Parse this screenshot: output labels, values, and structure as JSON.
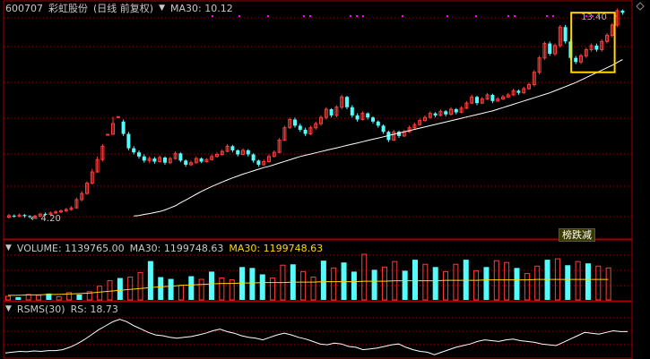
{
  "header": {
    "stock_code": "600707",
    "stock_name": "彩虹股份",
    "period": "(日线 前复权)",
    "ma_label": "MA30: 10.12"
  },
  "volume_header": {
    "volume": "VOLUME: 1139765.00",
    "ma30": "MA30: 1199748.63",
    "ma30_alt": "MA30: 1199748.63"
  },
  "rsms_header": {
    "name": "RSMS(30)",
    "rs": "RS: 18.73"
  },
  "badge": "榜跌减",
  "colors": {
    "up": "#ff3c3c",
    "down": "#54fcfc",
    "ma": "#ffffff",
    "volume_ma": "#ffd800",
    "highlight": "#ffd800",
    "grid": "#a00000",
    "marker": "#ff00ff"
  },
  "chart_data": [
    {
      "type": "candlestick",
      "title": "600707 彩虹股份 (日线 前复权)",
      "annotations": [
        "13.40",
        "4.20"
      ],
      "ylim": [
        3.4,
        14.6
      ],
      "candles": [
        [
          4.25,
          4.32,
          4.4,
          4.18
        ],
        [
          4.32,
          4.28,
          4.38,
          4.22
        ],
        [
          4.28,
          4.35,
          4.42,
          4.24
        ],
        [
          4.35,
          4.3,
          4.4,
          4.22
        ],
        [
          4.3,
          4.26,
          4.34,
          4.2
        ],
        [
          4.26,
          4.3,
          4.36,
          4.22
        ],
        [
          4.3,
          4.4,
          4.46,
          4.26
        ],
        [
          4.4,
          4.38,
          4.48,
          4.32
        ],
        [
          4.38,
          4.45,
          4.52,
          4.34
        ],
        [
          4.45,
          4.5,
          4.58,
          4.4
        ],
        [
          4.5,
          4.55,
          4.62,
          4.44
        ],
        [
          4.55,
          4.62,
          4.7,
          4.5
        ],
        [
          4.62,
          4.7,
          4.78,
          4.56
        ],
        [
          4.7,
          5.1,
          5.2,
          4.66
        ],
        [
          5.1,
          5.4,
          5.52,
          5.02
        ],
        [
          5.4,
          5.9,
          6.0,
          5.34
        ],
        [
          5.9,
          6.45,
          6.6,
          5.84
        ],
        [
          6.45,
          7.05,
          7.2,
          6.4
        ],
        [
          7.05,
          7.7,
          7.8,
          6.96
        ],
        [
          8.28,
          8.28,
          8.28,
          8.28
        ],
        [
          8.28,
          8.8,
          9.14,
          8.28
        ],
        [
          9.14,
          9.14,
          9.14,
          9.14
        ],
        [
          8.9,
          8.3,
          9.0,
          8.2
        ],
        [
          8.3,
          7.6,
          8.4,
          7.5
        ],
        [
          7.6,
          7.4,
          7.7,
          7.3
        ],
        [
          7.4,
          7.2,
          7.5,
          7.1
        ],
        [
          7.2,
          7.0,
          7.3,
          6.9
        ],
        [
          7.0,
          7.1,
          7.2,
          6.88
        ],
        [
          7.1,
          6.95,
          7.18,
          6.85
        ],
        [
          6.95,
          7.15,
          7.25,
          6.9
        ],
        [
          7.15,
          6.9,
          7.2,
          6.8
        ],
        [
          6.9,
          7.1,
          7.18,
          6.84
        ],
        [
          7.1,
          7.35,
          7.45,
          7.05
        ],
        [
          7.35,
          7.0,
          7.4,
          6.92
        ],
        [
          7.0,
          6.8,
          7.06,
          6.7
        ],
        [
          6.8,
          6.9,
          7.0,
          6.74
        ],
        [
          6.9,
          7.1,
          7.2,
          6.85
        ],
        [
          7.1,
          6.95,
          7.16,
          6.88
        ],
        [
          6.95,
          7.05,
          7.12,
          6.9
        ],
        [
          7.05,
          7.2,
          7.3,
          7.0
        ],
        [
          7.2,
          7.3,
          7.4,
          7.14
        ],
        [
          7.3,
          7.45,
          7.55,
          7.24
        ],
        [
          7.45,
          7.7,
          7.8,
          7.4
        ],
        [
          7.7,
          7.5,
          7.76,
          7.4
        ],
        [
          7.5,
          7.3,
          7.55,
          7.2
        ],
        [
          7.3,
          7.5,
          7.6,
          7.26
        ],
        [
          7.5,
          7.3,
          7.56,
          7.2
        ],
        [
          7.3,
          7.0,
          7.36,
          6.9
        ],
        [
          7.0,
          6.8,
          7.05,
          6.7
        ],
        [
          6.8,
          6.95,
          7.05,
          6.75
        ],
        [
          6.95,
          7.2,
          7.3,
          6.9
        ],
        [
          7.2,
          7.4,
          7.5,
          7.16
        ],
        [
          7.4,
          8.0,
          8.1,
          7.35
        ],
        [
          8.0,
          8.6,
          8.7,
          7.95
        ],
        [
          8.6,
          9.0,
          9.1,
          8.55
        ],
        [
          9.0,
          8.7,
          9.1,
          8.6
        ],
        [
          8.7,
          8.5,
          8.8,
          8.4
        ],
        [
          8.5,
          8.3,
          8.6,
          8.2
        ],
        [
          8.3,
          8.6,
          8.7,
          8.24
        ],
        [
          8.6,
          8.8,
          8.9,
          8.5
        ],
        [
          8.8,
          9.1,
          9.2,
          8.7
        ],
        [
          9.1,
          9.5,
          9.6,
          9.0
        ],
        [
          9.5,
          9.2,
          9.55,
          9.1
        ],
        [
          9.2,
          9.6,
          9.7,
          9.1
        ],
        [
          9.6,
          10.1,
          10.2,
          9.5
        ],
        [
          10.1,
          9.6,
          10.15,
          9.5
        ],
        [
          9.6,
          9.2,
          9.7,
          9.1
        ],
        [
          9.2,
          9.0,
          9.3,
          8.9
        ],
        [
          9.0,
          9.3,
          9.4,
          8.95
        ],
        [
          9.3,
          9.1,
          9.35,
          9.0
        ],
        [
          9.1,
          8.9,
          9.16,
          8.8
        ],
        [
          8.9,
          8.7,
          8.96,
          8.6
        ],
        [
          8.7,
          8.4,
          8.76,
          8.3
        ],
        [
          8.4,
          8.0,
          8.46,
          7.9
        ],
        [
          8.0,
          8.4,
          8.5,
          7.95
        ],
        [
          8.4,
          8.2,
          8.46,
          8.1
        ],
        [
          8.2,
          8.4,
          8.5,
          8.15
        ],
        [
          8.4,
          8.6,
          8.7,
          8.35
        ],
        [
          8.6,
          8.75,
          8.85,
          8.55
        ],
        [
          8.75,
          8.95,
          9.05,
          8.7
        ],
        [
          8.95,
          9.1,
          9.2,
          8.9
        ],
        [
          9.1,
          9.3,
          9.4,
          9.04
        ],
        [
          9.3,
          9.2,
          9.36,
          9.1
        ],
        [
          9.2,
          9.4,
          9.5,
          9.14
        ],
        [
          9.4,
          9.25,
          9.46,
          9.15
        ],
        [
          9.25,
          9.5,
          9.6,
          9.2
        ],
        [
          9.5,
          9.35,
          9.56,
          9.25
        ],
        [
          9.35,
          9.55,
          9.65,
          9.3
        ],
        [
          9.55,
          9.8,
          9.9,
          9.5
        ],
        [
          9.8,
          10.1,
          10.2,
          9.75
        ],
        [
          10.1,
          9.8,
          10.16,
          9.7
        ],
        [
          9.8,
          10.0,
          10.1,
          9.75
        ],
        [
          10.0,
          10.2,
          10.3,
          9.95
        ],
        [
          10.2,
          9.9,
          10.26,
          9.8
        ],
        [
          9.9,
          10.0,
          10.1,
          9.85
        ],
        [
          10.0,
          10.1,
          10.2,
          9.95
        ],
        [
          10.1,
          10.2,
          10.3,
          10.05
        ],
        [
          10.2,
          10.4,
          10.5,
          10.15
        ],
        [
          10.4,
          10.3,
          10.46,
          10.2
        ],
        [
          10.3,
          10.5,
          10.6,
          10.25
        ],
        [
          10.5,
          10.7,
          10.8,
          10.45
        ],
        [
          10.7,
          11.3,
          11.4,
          10.6
        ],
        [
          11.3,
          12.0,
          12.1,
          11.2
        ],
        [
          12.0,
          12.7,
          12.8,
          11.9
        ],
        [
          12.7,
          12.2,
          12.8,
          12.1
        ],
        [
          12.2,
          12.6,
          12.7,
          12.1
        ],
        [
          12.6,
          13.5,
          13.6,
          12.5
        ],
        [
          13.5,
          12.8,
          13.6,
          12.7
        ],
        [
          12.8,
          12.0,
          12.9,
          11.9
        ],
        [
          12.0,
          11.8,
          12.1,
          11.7
        ],
        [
          11.8,
          12.1,
          12.2,
          11.7
        ],
        [
          12.1,
          12.4,
          12.5,
          12.0
        ],
        [
          12.4,
          12.6,
          12.7,
          12.3
        ],
        [
          12.6,
          12.4,
          12.7,
          12.3
        ],
        [
          12.4,
          12.8,
          12.9,
          12.3
        ],
        [
          12.8,
          13.1,
          13.2,
          12.7
        ],
        [
          13.1,
          13.6,
          13.7,
          13.0
        ],
        [
          13.6,
          14.3,
          14.4,
          13.5
        ],
        [
          14.3,
          14.2,
          14.35,
          14.1
        ]
      ],
      "ma30": [
        4.3,
        4.33,
        4.38,
        4.42,
        4.47,
        4.52,
        4.6,
        4.7,
        4.8,
        4.95,
        5.08,
        5.22,
        5.36,
        5.5,
        5.62,
        5.74,
        5.85,
        5.96,
        6.06,
        6.16,
        6.25,
        6.34,
        6.42,
        6.5,
        6.58,
        6.66,
        6.72,
        6.8,
        6.88,
        6.96,
        7.04,
        7.12,
        7.2,
        7.26,
        7.32,
        7.38,
        7.44,
        7.5,
        7.56,
        7.62,
        7.68,
        7.74,
        7.8,
        7.86,
        7.92,
        7.98,
        8.04,
        8.1,
        8.16,
        8.22,
        8.28,
        8.34,
        8.4,
        8.46,
        8.52,
        8.58,
        8.64,
        8.7,
        8.76,
        8.82,
        8.88,
        8.94,
        9.0,
        9.06,
        9.12,
        9.18,
        9.24,
        9.3,
        9.36,
        9.42,
        9.5,
        9.58,
        9.66,
        9.74,
        9.82,
        9.9,
        9.98,
        10.06,
        10.14,
        10.22,
        10.3,
        10.4,
        10.5,
        10.6,
        10.7,
        10.8,
        10.92,
        11.04,
        11.16,
        11.28,
        11.4,
        11.52,
        11.64,
        11.78,
        11.92
      ]
    },
    {
      "type": "bar",
      "title": "VOLUME: 1139765.00",
      "series": [
        {
          "name": "MA30",
          "values": [
            0.1,
            0.1,
            0.11,
            0.11,
            0.12,
            0.12,
            0.13,
            0.14,
            0.15,
            0.17,
            0.19,
            0.21,
            0.23,
            0.25,
            0.27,
            0.29,
            0.3,
            0.32,
            0.33,
            0.34,
            0.35,
            0.36,
            0.36,
            0.37,
            0.37,
            0.38,
            0.38,
            0.38,
            0.39,
            0.39,
            0.39,
            0.4,
            0.4,
            0.4,
            0.4,
            0.41,
            0.41,
            0.41,
            0.42,
            0.42,
            0.42,
            0.42,
            0.42,
            0.43,
            0.43,
            0.43,
            0.43,
            0.44,
            0.44,
            0.44,
            0.44,
            0.44,
            0.45,
            0.45,
            0.45,
            0.45,
            0.45,
            0.45,
            0.45,
            0.45
          ]
        }
      ],
      "up": [
        1,
        0,
        1,
        1,
        0,
        1,
        1,
        0,
        1,
        1,
        1,
        0,
        1,
        1,
        0,
        0,
        0,
        1,
        0,
        1,
        0,
        1,
        1,
        0,
        0,
        0,
        1,
        1,
        0,
        1,
        1,
        0,
        1,
        0,
        0,
        1,
        0,
        1,
        1,
        0,
        0,
        1,
        0,
        1,
        1,
        0,
        1,
        0,
        1,
        1,
        0,
        1,
        1,
        0,
        1,
        0,
        1,
        0,
        1,
        1
      ],
      "values": [
        0.08,
        0.06,
        0.12,
        0.1,
        0.14,
        0.07,
        0.16,
        0.12,
        0.18,
        0.3,
        0.42,
        0.48,
        0.5,
        0.6,
        0.85,
        0.5,
        0.46,
        0.32,
        0.52,
        0.45,
        0.62,
        0.48,
        0.44,
        0.72,
        0.7,
        0.56,
        0.48,
        0.76,
        0.78,
        0.62,
        0.5,
        0.86,
        0.7,
        0.82,
        0.62,
        1.0,
        0.66,
        0.72,
        0.84,
        0.64,
        0.88,
        0.78,
        0.72,
        0.62,
        0.78,
        0.88,
        0.64,
        0.72,
        0.86,
        0.82,
        0.7,
        0.58,
        0.74,
        0.88,
        0.9,
        0.76,
        0.84,
        0.8,
        0.74,
        0.7
      ]
    },
    {
      "type": "line",
      "title": "RSMS(30)",
      "series": [
        {
          "name": "RS",
          "values": [
            0.08,
            0.1,
            0.12,
            0.11,
            0.13,
            0.12,
            0.14,
            0.14,
            0.16,
            0.22,
            0.3,
            0.4,
            0.52,
            0.64,
            0.74,
            0.84,
            0.9,
            0.84,
            0.74,
            0.66,
            0.58,
            0.52,
            0.5,
            0.46,
            0.44,
            0.46,
            0.48,
            0.52,
            0.56,
            0.62,
            0.66,
            0.6,
            0.56,
            0.5,
            0.46,
            0.44,
            0.4,
            0.46,
            0.52,
            0.56,
            0.52,
            0.46,
            0.42,
            0.36,
            0.3,
            0.28,
            0.32,
            0.3,
            0.24,
            0.22,
            0.16,
            0.18,
            0.2,
            0.24,
            0.28,
            0.3,
            0.22,
            0.16,
            0.12,
            0.1,
            0.04,
            0.1,
            0.16,
            0.22,
            0.26,
            0.3,
            0.36,
            0.4,
            0.38,
            0.36,
            0.4,
            0.42,
            0.38,
            0.36,
            0.34,
            0.3,
            0.28,
            0.26,
            0.34,
            0.42,
            0.5,
            0.58,
            0.56,
            0.54,
            0.58,
            0.62,
            0.6,
            0.6
          ]
        }
      ]
    }
  ]
}
